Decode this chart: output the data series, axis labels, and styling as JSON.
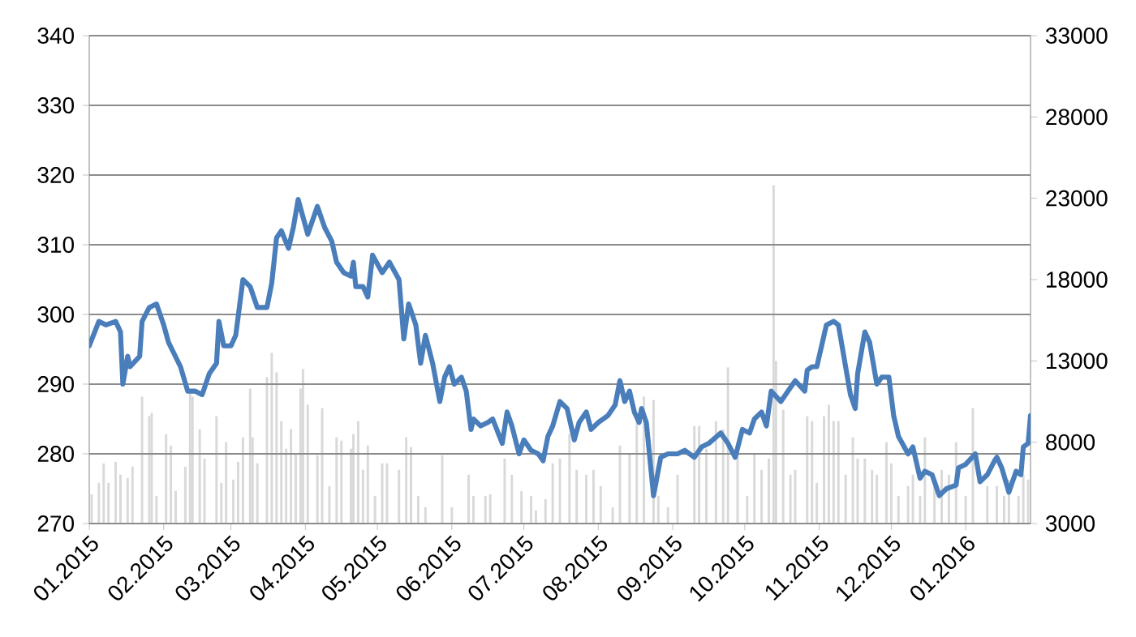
{
  "chart_data": {
    "type": "line",
    "xlim": [
      "2015-01-01",
      "2016-01-28"
    ],
    "xticks": [
      {
        "value": "2015-01-01",
        "label": "01.2015"
      },
      {
        "value": "2015-02-01",
        "label": "02.2015"
      },
      {
        "value": "2015-03-01",
        "label": "03.2015"
      },
      {
        "value": "2015-04-01",
        "label": "04.2015"
      },
      {
        "value": "2015-05-01",
        "label": "05.2015"
      },
      {
        "value": "2015-06-01",
        "label": "06.2015"
      },
      {
        "value": "2015-07-01",
        "label": "07.2015"
      },
      {
        "value": "2015-08-01",
        "label": "08.2015"
      },
      {
        "value": "2015-09-01",
        "label": "09.2015"
      },
      {
        "value": "2015-10-01",
        "label": "10.2015"
      },
      {
        "value": "2015-11-01",
        "label": "11.2015"
      },
      {
        "value": "2015-12-01",
        "label": "12.2015"
      },
      {
        "value": "2016-01-01",
        "label": "01.2016"
      }
    ],
    "ylim": [
      270,
      340
    ],
    "yticks": [
      270,
      280,
      290,
      300,
      310,
      320,
      330,
      340
    ],
    "y2lim": [
      3000,
      33000
    ],
    "y2ticks": [
      3000,
      8000,
      13000,
      18000,
      23000,
      28000,
      33000
    ],
    "grid": "y",
    "series": [
      {
        "type": "bar",
        "axis": "y2",
        "color": "#d9d9d9",
        "x": [
          "2015-01-02",
          "2015-01-05",
          "2015-01-07",
          "2015-01-09",
          "2015-01-12",
          "2015-01-14",
          "2015-01-17",
          "2015-01-19",
          "2015-01-23",
          "2015-01-26",
          "2015-01-27",
          "2015-01-29",
          "2015-02-02",
          "2015-02-04",
          "2015-02-06",
          "2015-02-10",
          "2015-02-12",
          "2015-02-13",
          "2015-02-16",
          "2015-02-18",
          "2015-02-23",
          "2015-02-25",
          "2015-02-27",
          "2015-03-02",
          "2015-03-04",
          "2015-03-06",
          "2015-03-09",
          "2015-03-10",
          "2015-03-12",
          "2015-03-16",
          "2015-03-18",
          "2015-03-20",
          "2015-03-22",
          "2015-03-24",
          "2015-03-26",
          "2015-03-28",
          "2015-03-30",
          "2015-03-31",
          "2015-04-02",
          "2015-04-06",
          "2015-04-08",
          "2015-04-11",
          "2015-04-14",
          "2015-04-16",
          "2015-04-20",
          "2015-04-21",
          "2015-04-23",
          "2015-04-25",
          "2015-04-27",
          "2015-04-30",
          "2015-05-03",
          "2015-05-05",
          "2015-05-10",
          "2015-05-13",
          "2015-05-15",
          "2015-05-18",
          "2015-05-21",
          "2015-05-28",
          "2015-06-01",
          "2015-06-08",
          "2015-06-10",
          "2015-06-15",
          "2015-06-17",
          "2015-06-23",
          "2015-06-26",
          "2015-06-30",
          "2015-07-04",
          "2015-07-06",
          "2015-07-10",
          "2015-07-13",
          "2015-07-16",
          "2015-07-20",
          "2015-07-23",
          "2015-07-27",
          "2015-07-30",
          "2015-08-02",
          "2015-08-07",
          "2015-08-10",
          "2015-08-14",
          "2015-08-17",
          "2015-08-20",
          "2015-08-24",
          "2015-08-26",
          "2015-08-30",
          "2015-09-03",
          "2015-09-06",
          "2015-09-10",
          "2015-09-12",
          "2015-09-15",
          "2015-09-19",
          "2015-09-22",
          "2015-09-24",
          "2015-09-28",
          "2015-10-02",
          "2015-10-05",
          "2015-10-08",
          "2015-10-11",
          "2015-10-13",
          "2015-10-14",
          "2015-10-17",
          "2015-10-20",
          "2015-10-22",
          "2015-10-25",
          "2015-10-27",
          "2015-10-29",
          "2015-10-31",
          "2015-11-03",
          "2015-11-05",
          "2015-11-07",
          "2015-11-09",
          "2015-11-12",
          "2015-11-15",
          "2015-11-17",
          "2015-11-20",
          "2015-11-23",
          "2015-11-25",
          "2015-11-29",
          "2015-12-01",
          "2015-12-04",
          "2015-12-08",
          "2015-12-10",
          "2015-12-13",
          "2015-12-15",
          "2015-12-19",
          "2015-12-22",
          "2015-12-25",
          "2015-12-28",
          "2016-01-01",
          "2016-01-04",
          "2016-01-07",
          "2016-01-10",
          "2016-01-14",
          "2016-01-17",
          "2016-01-19",
          "2016-01-23",
          "2016-01-25",
          "2016-01-27"
        ],
        "values": [
          4800,
          5500,
          6700,
          5500,
          6800,
          6000,
          5800,
          6500,
          10800,
          9600,
          9800,
          4700,
          8500,
          7800,
          5000,
          6500,
          11100,
          10800,
          8800,
          7000,
          9600,
          5500,
          8000,
          5700,
          6800,
          8300,
          11300,
          8300,
          6700,
          12000,
          13500,
          12300,
          9300,
          7600,
          8800,
          7300,
          11300,
          12500,
          10300,
          7200,
          10100,
          5300,
          8300,
          8100,
          7600,
          8500,
          9300,
          6300,
          7800,
          4700,
          6700,
          6700,
          6300,
          8300,
          7700,
          4700,
          4000,
          7200,
          4000,
          6000,
          4700,
          4700,
          4800,
          7000,
          6000,
          5000,
          4700,
          3800,
          4500,
          6700,
          7000,
          8500,
          6300,
          6000,
          6300,
          5300,
          4000,
          7800,
          7300,
          9300,
          10800,
          10600,
          4700,
          4000,
          6000,
          null,
          9000,
          9000,
          7600,
          9300,
          8800,
          12600,
          7300,
          4700,
          7300,
          6300,
          7000,
          23800,
          13000,
          10000,
          6000,
          6300,
          null,
          9600,
          9300,
          5500,
          9600,
          10300,
          9300,
          9300,
          6000,
          8300,
          7000,
          7000,
          6300,
          6000,
          8000,
          6700,
          4700,
          5300,
          6000,
          4700,
          8300,
          5300,
          6300,
          6000,
          8000,
          4700,
          10100,
          null,
          5300,
          5300,
          4700,
          5700,
          4700,
          6000,
          5700
        ]
      },
      {
        "color": "#4a7ebb",
        "x": [
          "2015-01-01",
          "2015-01-05",
          "2015-01-08",
          "2015-01-12",
          "2015-01-14",
          "2015-01-15",
          "2015-01-17",
          "2015-01-18",
          "2015-01-22",
          "2015-01-23",
          "2015-01-26",
          "2015-01-29",
          "2015-02-01",
          "2015-02-03",
          "2015-02-08",
          "2015-02-11",
          "2015-02-14",
          "2015-02-17",
          "2015-02-20",
          "2015-02-23",
          "2015-02-24",
          "2015-02-26",
          "2015-03-01",
          "2015-03-03",
          "2015-03-06",
          "2015-03-09",
          "2015-03-12",
          "2015-03-16",
          "2015-03-18",
          "2015-03-20",
          "2015-03-22",
          "2015-03-25",
          "2015-03-27",
          "2015-03-29",
          "2015-04-02",
          "2015-04-06",
          "2015-04-09",
          "2015-04-12",
          "2015-04-14",
          "2015-04-17",
          "2015-04-20",
          "2015-04-21",
          "2015-04-22",
          "2015-04-25",
          "2015-04-27",
          "2015-04-29",
          "2015-05-03",
          "2015-05-06",
          "2015-05-10",
          "2015-05-12",
          "2015-05-14",
          "2015-05-17",
          "2015-05-19",
          "2015-05-21",
          "2015-05-24",
          "2015-05-27",
          "2015-05-29",
          "2015-05-31",
          "2015-06-02",
          "2015-06-05",
          "2015-06-07",
          "2015-06-09",
          "2015-06-10",
          "2015-06-13",
          "2015-06-16",
          "2015-06-18",
          "2015-06-22",
          "2015-06-24",
          "2015-06-26",
          "2015-06-29",
          "2015-07-01",
          "2015-07-04",
          "2015-07-07",
          "2015-07-09",
          "2015-07-11",
          "2015-07-13",
          "2015-07-16",
          "2015-07-19",
          "2015-07-22",
          "2015-07-24",
          "2015-07-27",
          "2015-07-29",
          "2015-08-01",
          "2015-08-05",
          "2015-08-08",
          "2015-08-10",
          "2015-08-12",
          "2015-08-14",
          "2015-08-16",
          "2015-08-18",
          "2015-08-19",
          "2015-08-21",
          "2015-08-24",
          "2015-08-27",
          "2015-08-30",
          "2015-09-03",
          "2015-09-06",
          "2015-09-10",
          "2015-09-13",
          "2015-09-16",
          "2015-09-21",
          "2015-09-24",
          "2015-09-27",
          "2015-09-30",
          "2015-10-03",
          "2015-10-05",
          "2015-10-08",
          "2015-10-10",
          "2015-10-12",
          "2015-10-16",
          "2015-10-19",
          "2015-10-22",
          "2015-10-26",
          "2015-10-27",
          "2015-10-29",
          "2015-10-31",
          "2015-11-03",
          "2015-11-04",
          "2015-11-07",
          "2015-11-09",
          "2015-11-12",
          "2015-11-14",
          "2015-11-16",
          "2015-11-17",
          "2015-11-20",
          "2015-11-22",
          "2015-11-25",
          "2015-11-27",
          "2015-11-30",
          "2015-12-02",
          "2015-12-04",
          "2015-12-08",
          "2015-12-10",
          "2015-12-13",
          "2015-12-15",
          "2015-12-18",
          "2015-12-21",
          "2015-12-24",
          "2015-12-28",
          "2015-12-29",
          "2016-01-01",
          "2016-01-05",
          "2016-01-07",
          "2016-01-10",
          "2016-01-13",
          "2016-01-14",
          "2016-01-16",
          "2016-01-19",
          "2016-01-22",
          "2016-01-24",
          "2016-01-25",
          "2016-01-27",
          "2016-01-28"
        ],
        "values": [
          295.5,
          299,
          298.5,
          299,
          297.5,
          290,
          294,
          292.5,
          294,
          299,
          301,
          301.5,
          298.5,
          296,
          292.5,
          289,
          289,
          288.5,
          291.5,
          293,
          299,
          295.5,
          295.5,
          297,
          305,
          304,
          301,
          301,
          304.5,
          311,
          312,
          309.5,
          312.5,
          316.5,
          311.5,
          315.5,
          312.5,
          310.5,
          307.5,
          306,
          305.5,
          307.5,
          304,
          304,
          302.5,
          308.5,
          306,
          307.5,
          305,
          296.5,
          301.5,
          298.5,
          293,
          297,
          293,
          287.5,
          291,
          292.5,
          290,
          291,
          289,
          283.5,
          285,
          284,
          284.5,
          285,
          281.5,
          286,
          284,
          280,
          282,
          280.5,
          280,
          279,
          282.5,
          284,
          287.5,
          286.5,
          282,
          284.5,
          286,
          283.5,
          284.5,
          285.5,
          287,
          290.5,
          287.5,
          289,
          286,
          284.5,
          286.5,
          284.5,
          274,
          279.5,
          280,
          280,
          280.5,
          279.5,
          281,
          281.5,
          283,
          281.5,
          279.5,
          283.5,
          283,
          285,
          286,
          284,
          289,
          287.5,
          289,
          290.5,
          289,
          292,
          292.5,
          292.5,
          297,
          298.5,
          299,
          298.5,
          292.5,
          288.5,
          286.5,
          291.5,
          297.5,
          296,
          290,
          291,
          291,
          285.5,
          282.5,
          280,
          281,
          276.5,
          277.5,
          277,
          274,
          275,
          275.5,
          278,
          278.5,
          280,
          276,
          277,
          279,
          279.5,
          278,
          274.5,
          277.5,
          277,
          281,
          281.5,
          285.5
        ]
      }
    ]
  }
}
